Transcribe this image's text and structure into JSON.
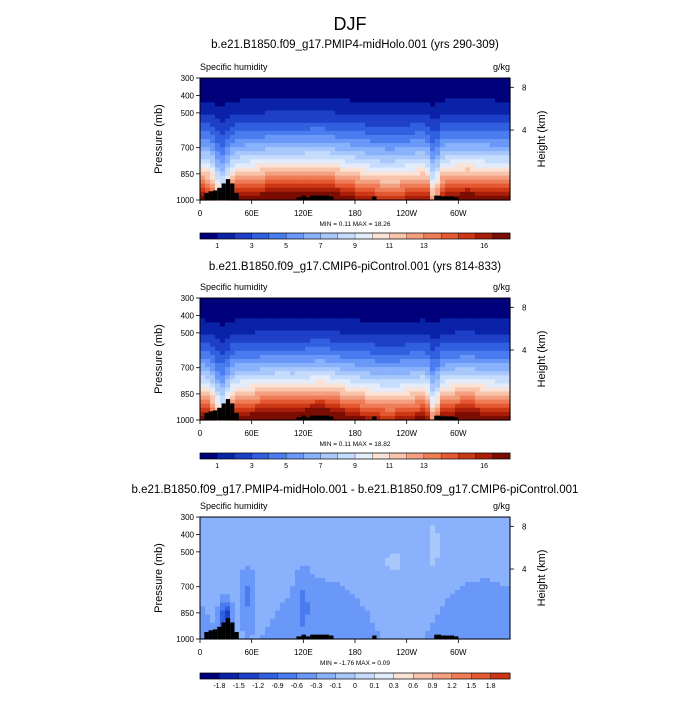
{
  "figure_title": "DJF",
  "chart_data": [
    {
      "type": "heatmap",
      "title": "b.e21.B1850.f09_g17.PMIP4-midHolo.001 (yrs 290-309)",
      "left_label": "Specific humidity",
      "right_label": "g/kg",
      "xlabel": "",
      "ylabel": "Pressure (mb)",
      "y2label": "Height (km)",
      "x_ticks": [
        "0",
        "60E",
        "120E",
        "180",
        "120W",
        "60W"
      ],
      "y_ticks": [
        1000,
        850,
        700,
        500,
        400,
        300
      ],
      "y2_ticks": [
        4,
        8
      ],
      "ylim": [
        1000,
        300
      ],
      "min_text": "MIN =   0.11  MAX =  18.26",
      "colorbar": [
        "1",
        "3",
        "5",
        "7",
        "9",
        "11",
        "13",
        "16"
      ],
      "colors": [
        "#00007a",
        "#0a22a8",
        "#1e40c8",
        "#3060e0",
        "#4a7cf0",
        "#6a98f8",
        "#8ab2fc",
        "#a8c8fc",
        "#c6dcfc",
        "#e2ecfa",
        "#fbe2d6",
        "#f8c4ac",
        "#f4a080",
        "#ee7c56",
        "#e45832",
        "#cc3816",
        "#a81e08",
        "#7a0c02"
      ]
    },
    {
      "type": "heatmap",
      "title": "b.e21.B1850.f09_g17.CMIP6-piControl.001 (yrs 814-833)",
      "left_label": "Specific humidity",
      "right_label": "g/kg",
      "xlabel": "",
      "ylabel": "Pressure (mb)",
      "y2label": "Height (km)",
      "x_ticks": [
        "0",
        "60E",
        "120E",
        "180",
        "120W",
        "60W"
      ],
      "y_ticks": [
        1000,
        850,
        700,
        500,
        400,
        300
      ],
      "y2_ticks": [
        4,
        8
      ],
      "ylim": [
        1000,
        300
      ],
      "min_text": "MIN =   0.11  MAX =  18.82",
      "colorbar": [
        "1",
        "3",
        "5",
        "7",
        "9",
        "11",
        "13",
        "16"
      ],
      "colors": [
        "#00007a",
        "#0a22a8",
        "#1e40c8",
        "#3060e0",
        "#4a7cf0",
        "#6a98f8",
        "#8ab2fc",
        "#a8c8fc",
        "#c6dcfc",
        "#e2ecfa",
        "#fbe2d6",
        "#f8c4ac",
        "#f4a080",
        "#ee7c56",
        "#e45832",
        "#cc3816",
        "#a81e08",
        "#7a0c02"
      ]
    },
    {
      "type": "heatmap",
      "title": "b.e21.B1850.f09_g17.PMIP4-midHolo.001 - b.e21.B1850.f09_g17.CMIP6-piControl.001",
      "left_label": "Specific humidity",
      "right_label": "g/kg",
      "xlabel": "",
      "ylabel": "Pressure (mb)",
      "y2label": "Height (km)",
      "x_ticks": [
        "0",
        "60E",
        "120E",
        "180",
        "120W",
        "60W"
      ],
      "y_ticks": [
        1000,
        850,
        700,
        500,
        400,
        300
      ],
      "y2_ticks": [
        4,
        8
      ],
      "ylim": [
        1000,
        300
      ],
      "min_text": "MIN =  -1.76  MAX =   0.09",
      "colorbar": [
        "-1.8",
        "-1.5",
        "-1.2",
        "-0.9",
        "-0.6",
        "-0.3",
        "-0.1",
        "0",
        "0.1",
        "0.3",
        "0.6",
        "0.9",
        "1.2",
        "1.5",
        "1.8"
      ],
      "colors": [
        "#00007a",
        "#0a22a8",
        "#1e40c8",
        "#3060e0",
        "#4a7cf0",
        "#6a98f8",
        "#8ab2fc",
        "#a8c8fc",
        "#c6dcfc",
        "#e2ecfa",
        "#fbe2d6",
        "#f8c4ac",
        "#f4a080",
        "#ee7c56",
        "#e45832",
        "#cc3816"
      ]
    }
  ]
}
